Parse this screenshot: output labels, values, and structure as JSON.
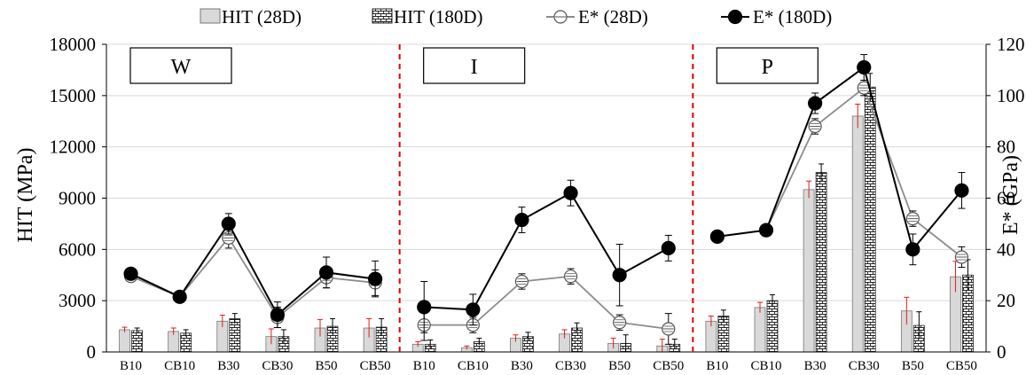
{
  "chart_data": {
    "type": "bar",
    "title": "",
    "ylabel": "HIT (MPa)",
    "y2label": "E* (GPa)",
    "ylim": [
      0,
      18000
    ],
    "y2lim": [
      0,
      120
    ],
    "yticks": [
      0,
      3000,
      6000,
      9000,
      12000,
      15000,
      18000
    ],
    "y2ticks": [
      0,
      20,
      40,
      60,
      80,
      100,
      120
    ],
    "grid": true,
    "legend_position": "top",
    "panels": [
      "W",
      "I",
      "P"
    ],
    "categories": [
      "B10",
      "CB10",
      "B30",
      "CB30",
      "B50",
      "CB50"
    ],
    "series": [
      {
        "name": "HIT (28D)",
        "kind": "bar",
        "axis": "left",
        "values": [
          [
            1300,
            1200,
            1800,
            900,
            1400,
            1400
          ],
          [
            450,
            250,
            800,
            1050,
            500,
            350
          ],
          [
            1800,
            2600,
            9500,
            13800,
            2400,
            4400
          ]
        ],
        "errors": [
          [
            150,
            200,
            350,
            450,
            500,
            550
          ],
          [
            150,
            100,
            200,
            250,
            300,
            400
          ],
          [
            300,
            300,
            500,
            700,
            800,
            900
          ]
        ]
      },
      {
        "name": "HIT (180D)",
        "kind": "bar",
        "axis": "left",
        "values": [
          [
            1250,
            1100,
            1950,
            900,
            1500,
            1450
          ],
          [
            450,
            600,
            900,
            1400,
            500,
            450
          ],
          [
            2100,
            3000,
            10500,
            15500,
            1550,
            4500
          ]
        ],
        "errors": [
          [
            150,
            200,
            300,
            400,
            450,
            500
          ],
          [
            250,
            200,
            250,
            300,
            500,
            300
          ],
          [
            350,
            350,
            500,
            800,
            800,
            900
          ]
        ]
      },
      {
        "name": "E* (28D)",
        "kind": "line",
        "axis": "right",
        "values": [
          [
            29.5,
            21.5,
            44.5,
            13.5,
            29,
            27
          ],
          [
            10.5,
            10.5,
            27.5,
            29.5,
            11.5,
            9
          ],
          [
            45,
            47.5,
            88,
            103,
            52,
            37
          ]
        ],
        "errors": [
          [
            2,
            2,
            4,
            4,
            4,
            5
          ],
          [
            6,
            3,
            3,
            3,
            3,
            6
          ],
          [
            2,
            2,
            3,
            3,
            3,
            4
          ]
        ]
      },
      {
        "name": "E* (180D)",
        "kind": "line",
        "axis": "right",
        "values": [
          [
            30.5,
            21.5,
            50,
            14.5,
            31,
            28.5
          ],
          [
            17.5,
            16.5,
            51.5,
            62,
            30,
            40.5
          ],
          [
            45,
            47.5,
            97,
            111,
            40,
            63
          ]
        ],
        "errors": [
          [
            2,
            2,
            4,
            5,
            6,
            7
          ],
          [
            10,
            6,
            5,
            5,
            12,
            5
          ],
          [
            2,
            2,
            4,
            5,
            6,
            7
          ]
        ]
      }
    ]
  }
}
